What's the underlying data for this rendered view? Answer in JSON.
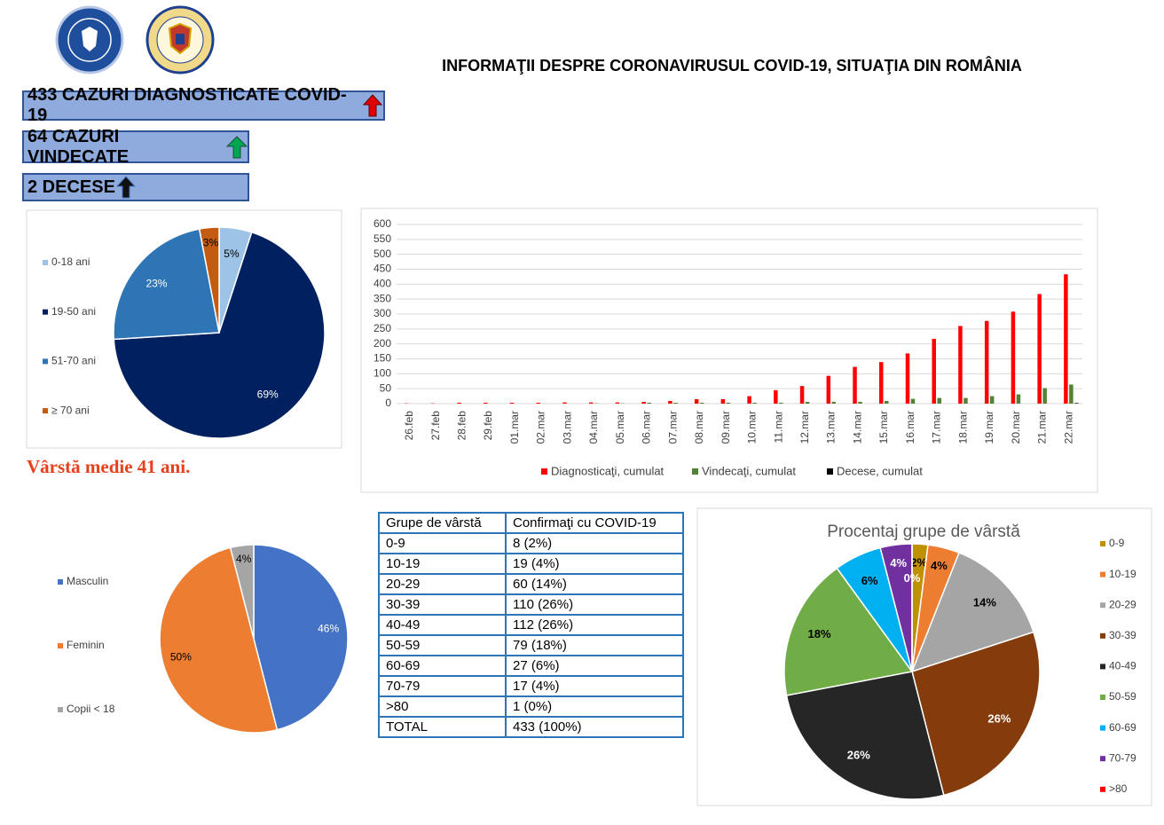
{
  "header": {
    "title": "INFORMAŢII DESPRE CORONAVIRUSUL COVID-19, SITUAŢIA DIN ROMÂNIA"
  },
  "stats": [
    "433 CAZURI DIAGNOSTICATE COVID-19",
    "64 CAZURI VINDECATE",
    "2 DECESE"
  ],
  "note": "Vârstă medie 41 ani.",
  "table": {
    "header": [
      "Grupe de vârstă",
      "Confirmaţi cu COVID-19"
    ],
    "rows": [
      [
        "0-9",
        "8 (2%)"
      ],
      [
        "10-19",
        "19 (4%)"
      ],
      [
        "20-29",
        "60 (14%)"
      ],
      [
        "30-39",
        "110 (26%)"
      ],
      [
        "40-49",
        "112 (26%)"
      ],
      [
        "50-59",
        "79 (18%)"
      ],
      [
        "60-69",
        "27 (6%)"
      ],
      [
        "70-79",
        "17 (4%)"
      ],
      [
        ">80",
        "1 (0%)"
      ],
      [
        "TOTAL",
        "433 (100%)"
      ]
    ]
  },
  "chart_data": [
    {
      "type": "pie",
      "categories": [
        "0-18 ani",
        "19-50 ani",
        "51-70 ani",
        "≥ 70 ani"
      ],
      "values": [
        5,
        69,
        23,
        3
      ],
      "value_labels": [
        "5%",
        "69%",
        "23%",
        "3%"
      ],
      "colors": [
        "#9dc3e6",
        "#002060",
        "#2e75b6",
        "#c55a11"
      ]
    },
    {
      "type": "bar",
      "categories": [
        "26.feb",
        "27.feb",
        "28.feb",
        "29.feb",
        "01.mar",
        "02.mar",
        "03.mar",
        "04.mar",
        "05.mar",
        "06.mar",
        "07.mar",
        "08.mar",
        "09.mar",
        "10.mar",
        "11.mar",
        "12.mar",
        "13.mar",
        "14.mar",
        "15.mar",
        "16.mar",
        "17.mar",
        "18.mar",
        "19.mar",
        "20.mar",
        "21.mar",
        "22.mar"
      ],
      "series": [
        {
          "name": "Diagnosticaţi, cumulat",
          "color": "#ff0000",
          "values": [
            1,
            1,
            3,
            3,
            3,
            3,
            4,
            4,
            4,
            6,
            9,
            15,
            15,
            25,
            45,
            59,
            93,
            123,
            139,
            168,
            217,
            260,
            277,
            308,
            367,
            433
          ]
        },
        {
          "name": "Vindecaţi, cumulat",
          "color": "#548235",
          "values": [
            0,
            0,
            0,
            0,
            0,
            0,
            0,
            1,
            1,
            3,
            3,
            3,
            3,
            3,
            3,
            6,
            6,
            6,
            9,
            16,
            19,
            19,
            25,
            31,
            52,
            64
          ]
        },
        {
          "name": "Decese, cumulat",
          "color": "#000000",
          "values": [
            0,
            0,
            0,
            0,
            0,
            0,
            0,
            0,
            0,
            0,
            0,
            0,
            0,
            0,
            0,
            0,
            0,
            0,
            0,
            0,
            0,
            0,
            0,
            0,
            0,
            2
          ]
        }
      ],
      "ylim": [
        0,
        600
      ],
      "yticks": [
        0,
        50,
        100,
        150,
        200,
        250,
        300,
        350,
        400,
        450,
        500,
        550,
        600
      ],
      "grid": true
    },
    {
      "type": "pie",
      "categories": [
        "Masculin",
        "Feminin",
        "Copii < 18"
      ],
      "values": [
        46,
        50,
        4
      ],
      "value_labels": [
        "46%",
        "50%",
        "4%"
      ],
      "colors": [
        "#4472c4",
        "#ed7d31",
        "#a5a5a5"
      ]
    },
    {
      "type": "pie",
      "title": "Procentaj grupe de vârstă",
      "categories": [
        "0-9",
        "10-19",
        "20-29",
        "30-39",
        "40-49",
        "50-59",
        "60-69",
        "70-79",
        ">80"
      ],
      "values": [
        2,
        4,
        14,
        26,
        26,
        18,
        6,
        4,
        0
      ],
      "value_labels": [
        "2%",
        "4%",
        "14%",
        "26%",
        "26%",
        "18%",
        "6%",
        "4%",
        "0%"
      ],
      "colors": [
        "#bf9000",
        "#ed7d31",
        "#a5a5a5",
        "#843c0c",
        "#262626",
        "#70ad47",
        "#00b0f0",
        "#7030a0",
        "#ff0000"
      ]
    }
  ]
}
